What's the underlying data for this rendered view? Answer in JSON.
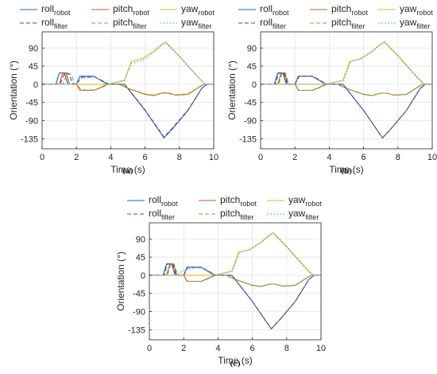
{
  "chart_data": [
    {
      "type": "line",
      "caption": "(a)",
      "xlabel": "Time (s)",
      "ylabel": "Orientation (°)",
      "xlim": [
        0,
        10
      ],
      "ylim": [
        -160,
        130
      ],
      "xticks": [
        0,
        2,
        4,
        6,
        8,
        10
      ],
      "yticks": [
        -135,
        -90,
        -45,
        0,
        45,
        90
      ],
      "grid": true,
      "legend_position": "top",
      "series": [
        {
          "name": "roll",
          "subscript": "robot",
          "color": "#0072BD",
          "dash": "solid",
          "x": [
            0,
            0.8,
            1.0,
            1.3,
            1.5,
            2.0,
            2.2,
            2.8,
            3.0,
            3.8,
            4.3,
            4.8,
            5.3,
            6.0,
            7.1,
            7.6,
            8.5,
            9.3,
            9.6,
            10.0
          ],
          "y": [
            0,
            0,
            28,
            28,
            0,
            0,
            20,
            20,
            20,
            0,
            0,
            0,
            -27,
            -65,
            -133,
            -110,
            -65,
            -10,
            0,
            0
          ]
        },
        {
          "name": "pitch",
          "subscript": "robot",
          "color": "#D95319",
          "dash": "solid",
          "x": [
            0,
            1.0,
            1.2,
            1.4,
            1.6,
            2.0,
            2.2,
            2.8,
            3.0,
            3.3,
            3.8,
            4.5,
            5.0,
            6.0,
            6.5,
            7.0,
            7.3,
            7.8,
            8.5,
            9.3,
            9.5,
            10.0
          ],
          "y": [
            0,
            0,
            28,
            28,
            0,
            0,
            -15,
            -15,
            -15,
            -10,
            0,
            0,
            -10,
            -25,
            -28,
            -22,
            -22,
            -27,
            -25,
            -3,
            0,
            0
          ]
        },
        {
          "name": "yaw",
          "subscript": "robot",
          "color": "#EDB120",
          "dash": "solid",
          "x": [
            0,
            3.8,
            4.8,
            5.2,
            5.8,
            6.5,
            7.0,
            7.2,
            8.0,
            9.0,
            9.5,
            10.0
          ],
          "y": [
            0,
            0,
            10,
            57,
            63,
            82,
            100,
            105,
            70,
            22,
            0,
            0
          ]
        },
        {
          "name": "roll",
          "subscript": "filter",
          "color": "#7E2F8E",
          "dash": "dashed",
          "x": [
            0,
            1.05,
            1.3,
            1.55,
            1.8,
            2.0,
            2.3,
            2.9,
            3.1,
            3.9,
            4.3,
            4.8,
            5.3,
            6.0,
            7.1,
            7.6,
            8.5,
            9.3,
            9.6,
            10.0
          ],
          "y": [
            0,
            0,
            27,
            27,
            0,
            0,
            18,
            18,
            18,
            0,
            0,
            0,
            -26,
            -64,
            -131,
            -108,
            -64,
            -10,
            0,
            0
          ]
        },
        {
          "name": "pitch",
          "subscript": "filter",
          "color": "#77AC30",
          "dash": "dashed",
          "x": [
            0,
            1.2,
            1.45,
            1.7,
            1.9,
            2.0,
            2.3,
            2.9,
            3.1,
            3.4,
            3.9,
            4.5,
            5.0,
            6.0,
            6.5,
            7.0,
            7.3,
            7.8,
            8.5,
            9.3,
            9.5,
            10.0
          ],
          "y": [
            0,
            0,
            25,
            25,
            0,
            0,
            -14,
            -14,
            -14,
            -9,
            0,
            0,
            -10,
            -24,
            -27,
            -21,
            -21,
            -26,
            -24,
            -3,
            0,
            0
          ]
        },
        {
          "name": "yaw",
          "subscript": "filter",
          "color": "#4DBEEE",
          "dash": "dotted",
          "x": [
            0,
            1.9,
            2.3,
            3.0,
            3.5,
            3.9,
            4.8,
            5.2,
            5.8,
            6.5,
            7.0,
            7.2,
            8.0,
            9.0,
            9.5,
            10.0
          ],
          "y": [
            0,
            0,
            15,
            18,
            10,
            0,
            8,
            52,
            58,
            78,
            98,
            102,
            68,
            21,
            0,
            0
          ]
        }
      ]
    },
    {
      "type": "line",
      "caption": "(b)",
      "xlabel": "Time (s)",
      "ylabel": "Orientation (°)",
      "xlim": [
        0,
        10
      ],
      "ylim": [
        -160,
        130
      ],
      "xticks": [
        0,
        2,
        4,
        6,
        8,
        10
      ],
      "yticks": [
        -135,
        -90,
        -45,
        0,
        45,
        90
      ],
      "grid": true,
      "legend_position": "top",
      "series": [
        {
          "name": "roll",
          "subscript": "robot",
          "color": "#0072BD",
          "dash": "solid",
          "x": [
            0,
            0.8,
            1.0,
            1.3,
            1.5,
            2.0,
            2.2,
            2.8,
            3.0,
            3.8,
            4.3,
            4.8,
            5.3,
            6.0,
            7.1,
            7.6,
            8.5,
            9.3,
            9.6,
            10.0
          ],
          "y": [
            0,
            0,
            28,
            28,
            0,
            0,
            20,
            20,
            20,
            0,
            0,
            0,
            -27,
            -65,
            -133,
            -110,
            -65,
            -10,
            0,
            0
          ]
        },
        {
          "name": "pitch",
          "subscript": "robot",
          "color": "#D95319",
          "dash": "solid",
          "x": [
            0,
            1.0,
            1.2,
            1.4,
            1.6,
            2.0,
            2.2,
            2.8,
            3.0,
            3.3,
            3.8,
            4.5,
            5.0,
            6.0,
            6.5,
            7.0,
            7.3,
            7.8,
            8.5,
            9.3,
            9.5,
            10.0
          ],
          "y": [
            0,
            0,
            28,
            28,
            0,
            0,
            -15,
            -15,
            -15,
            -10,
            0,
            0,
            -10,
            -25,
            -28,
            -22,
            -22,
            -27,
            -25,
            -3,
            0,
            0
          ]
        },
        {
          "name": "yaw",
          "subscript": "robot",
          "color": "#EDB120",
          "dash": "solid",
          "x": [
            0,
            3.8,
            4.8,
            5.2,
            5.8,
            6.5,
            7.0,
            7.2,
            8.0,
            9.0,
            9.5,
            10.0
          ],
          "y": [
            0,
            0,
            10,
            57,
            63,
            82,
            100,
            105,
            70,
            22,
            0,
            0
          ]
        },
        {
          "name": "roll",
          "subscript": "filter",
          "color": "#7E2F8E",
          "dash": "dashed",
          "x": [
            0,
            0.85,
            1.05,
            1.35,
            1.55,
            2.0,
            2.25,
            2.85,
            3.05,
            3.85,
            4.3,
            4.8,
            5.3,
            6.0,
            7.1,
            7.6,
            8.5,
            9.3,
            9.6,
            10.0
          ],
          "y": [
            0,
            0,
            28,
            28,
            0,
            0,
            20,
            20,
            20,
            0,
            0,
            0,
            -27,
            -65,
            -133,
            -110,
            -65,
            -10,
            0,
            0
          ]
        },
        {
          "name": "pitch",
          "subscript": "filter",
          "color": "#77AC30",
          "dash": "dashed",
          "x": [
            0,
            1.05,
            1.25,
            1.45,
            1.65,
            2.0,
            2.25,
            2.85,
            3.05,
            3.35,
            3.85,
            4.5,
            5.0,
            6.0,
            6.5,
            7.0,
            7.3,
            7.8,
            8.5,
            9.3,
            9.5,
            10.0
          ],
          "y": [
            0,
            0,
            28,
            28,
            0,
            0,
            -15,
            -15,
            -15,
            -10,
            0,
            0,
            -10,
            -25,
            -28,
            -22,
            -22,
            -27,
            -25,
            -3,
            0,
            0
          ]
        },
        {
          "name": "yaw",
          "subscript": "filter",
          "color": "#4DBEEE",
          "dash": "dotted",
          "x": [
            0,
            3.85,
            4.85,
            5.25,
            5.85,
            6.55,
            7.05,
            7.25,
            8.05,
            9.05,
            9.55,
            10.0
          ],
          "y": [
            0,
            0,
            10,
            57,
            63,
            82,
            100,
            105,
            70,
            22,
            0,
            0
          ]
        }
      ]
    },
    {
      "type": "line",
      "caption": "(c)",
      "xlabel": "Time (s)",
      "ylabel": "Orientation (°)",
      "xlim": [
        0,
        10
      ],
      "ylim": [
        -160,
        130
      ],
      "xticks": [
        0,
        2,
        4,
        6,
        8,
        10
      ],
      "yticks": [
        -135,
        -90,
        -45,
        0,
        45,
        90
      ],
      "grid": true,
      "legend_position": "top",
      "series": [
        {
          "name": "roll",
          "subscript": "robot",
          "color": "#0072BD",
          "dash": "solid",
          "x": [
            0,
            0.8,
            1.0,
            1.3,
            1.5,
            2.0,
            2.2,
            2.8,
            3.0,
            3.8,
            4.3,
            4.8,
            5.3,
            6.0,
            7.1,
            7.6,
            8.5,
            9.3,
            9.6,
            10.0
          ],
          "y": [
            0,
            0,
            28,
            28,
            0,
            0,
            20,
            20,
            20,
            0,
            0,
            0,
            -27,
            -65,
            -133,
            -110,
            -65,
            -10,
            0,
            0
          ]
        },
        {
          "name": "pitch",
          "subscript": "robot",
          "color": "#D95319",
          "dash": "solid",
          "x": [
            0,
            1.0,
            1.2,
            1.4,
            1.6,
            2.0,
            2.2,
            2.8,
            3.0,
            3.3,
            3.8,
            4.5,
            5.0,
            6.0,
            6.5,
            7.0,
            7.3,
            7.8,
            8.5,
            9.3,
            9.5,
            10.0
          ],
          "y": [
            0,
            0,
            28,
            28,
            0,
            0,
            -15,
            -15,
            -15,
            -10,
            0,
            0,
            -10,
            -25,
            -28,
            -22,
            -22,
            -27,
            -25,
            -3,
            0,
            0
          ]
        },
        {
          "name": "yaw",
          "subscript": "robot",
          "color": "#EDB120",
          "dash": "solid",
          "x": [
            0,
            3.8,
            4.8,
            5.2,
            5.8,
            6.5,
            7.0,
            7.2,
            8.0,
            9.0,
            9.5,
            10.0
          ],
          "y": [
            0,
            0,
            10,
            57,
            63,
            82,
            100,
            105,
            70,
            22,
            0,
            0
          ]
        },
        {
          "name": "roll",
          "subscript": "filter",
          "color": "#7E2F8E",
          "dash": "dashed",
          "x": [
            0,
            0.85,
            1.05,
            1.35,
            1.55,
            2.0,
            2.25,
            2.85,
            3.05,
            3.85,
            4.3,
            4.8,
            5.3,
            6.0,
            7.1,
            7.6,
            8.5,
            9.3,
            9.6,
            10.0
          ],
          "y": [
            0,
            0,
            28,
            28,
            0,
            0,
            20,
            20,
            20,
            0,
            0,
            0,
            -27,
            -65,
            -133,
            -110,
            -65,
            -10,
            0,
            0
          ]
        },
        {
          "name": "pitch",
          "subscript": "filter",
          "color": "#77AC30",
          "dash": "dashed",
          "x": [
            0,
            1.05,
            1.25,
            1.45,
            1.65,
            2.0,
            2.25,
            2.85,
            3.05,
            3.35,
            3.85,
            4.5,
            5.0,
            6.0,
            6.5,
            7.0,
            7.3,
            7.8,
            8.5,
            9.3,
            9.5,
            10.0
          ],
          "y": [
            0,
            0,
            28,
            28,
            0,
            0,
            -15,
            -15,
            -15,
            -10,
            0,
            0,
            -10,
            -25,
            -28,
            -22,
            -22,
            -27,
            -25,
            -3,
            0,
            0
          ]
        },
        {
          "name": "yaw",
          "subscript": "filter",
          "color": "#4DBEEE",
          "dash": "dotted",
          "x": [
            0,
            1.5,
            2.0,
            2.6,
            3.0,
            3.5,
            3.85,
            4.85,
            5.25,
            5.85,
            6.55,
            7.05,
            7.25,
            8.05,
            9.05,
            9.55,
            10.0
          ],
          "y": [
            0,
            0,
            12,
            18,
            18,
            10,
            0,
            10,
            57,
            63,
            82,
            100,
            105,
            70,
            22,
            0,
            0
          ]
        }
      ]
    }
  ]
}
